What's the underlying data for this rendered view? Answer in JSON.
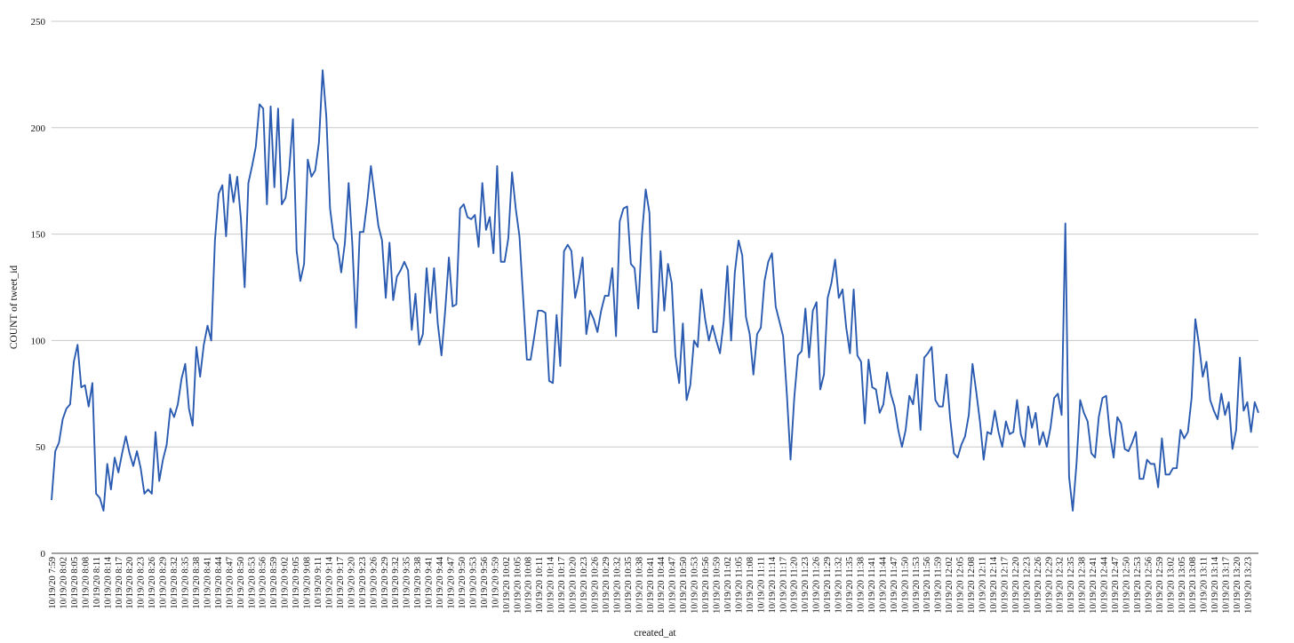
{
  "chart_data": {
    "type": "line",
    "xlabel": "created_at",
    "ylabel": "COUNT of tweet_id",
    "ylim": [
      0,
      250
    ],
    "yticks": [
      0,
      50,
      100,
      150,
      200,
      250
    ],
    "grid": true,
    "legend": "none",
    "series_color": "#2a5bb0",
    "x_tick_labels": [
      "10/19/20 7:59",
      "10/19/20 8:02",
      "10/19/20 8:05",
      "10/19/20 8:08",
      "10/19/20 8:11",
      "10/19/20 8:14",
      "10/19/20 8:17",
      "10/19/20 8:20",
      "10/19/20 8:23",
      "10/19/20 8:26",
      "10/19/20 8:29",
      "10/19/20 8:32",
      "10/19/20 8:35",
      "10/19/20 8:38",
      "10/19/20 8:41",
      "10/19/20 8:44",
      "10/19/20 8:47",
      "10/19/20 8:50",
      "10/19/20 8:53",
      "10/19/20 8:56",
      "10/19/20 8:59",
      "10/19/20 9:02",
      "10/19/20 9:05",
      "10/19/20 9:08",
      "10/19/20 9:11",
      "10/19/20 9:14",
      "10/19/20 9:17",
      "10/19/20 9:20",
      "10/19/20 9:23",
      "10/19/20 9:26",
      "10/19/20 9:29",
      "10/19/20 9:32",
      "10/19/20 9:35",
      "10/19/20 9:38",
      "10/19/20 9:41",
      "10/19/20 9:44",
      "10/19/20 9:47",
      "10/19/20 9:50",
      "10/19/20 9:53",
      "10/19/20 9:56",
      "10/19/20 9:59",
      "10/19/20 10:02",
      "10/19/20 10:05",
      "10/19/20 10:08",
      "10/19/20 10:11",
      "10/19/20 10:14",
      "10/19/20 10:17",
      "10/19/20 10:20",
      "10/19/20 10:23",
      "10/19/20 10:26",
      "10/19/20 10:29",
      "10/19/20 10:32",
      "10/19/20 10:35",
      "10/19/20 10:38",
      "10/19/20 10:41",
      "10/19/20 10:44",
      "10/19/20 10:47",
      "10/19/20 10:50",
      "10/19/20 10:53",
      "10/19/20 10:56",
      "10/19/20 10:59",
      "10/19/20 11:02",
      "10/19/20 11:05",
      "10/19/20 11:08",
      "10/19/20 11:11",
      "10/19/20 11:14",
      "10/19/20 11:17",
      "10/19/20 11:20",
      "10/19/20 11:23",
      "10/19/20 11:26",
      "10/19/20 11:29",
      "10/19/20 11:32",
      "10/19/20 11:35",
      "10/19/20 11:38",
      "10/19/20 11:41",
      "10/19/20 11:44",
      "10/19/20 11:47",
      "10/19/20 11:50",
      "10/19/20 11:53",
      "10/19/20 11:56",
      "10/19/20 11:59",
      "10/19/20 12:02",
      "10/19/20 12:05",
      "10/19/20 12:08",
      "10/19/20 12:11",
      "10/19/20 12:14",
      "10/19/20 12:17",
      "10/19/20 12:20",
      "10/19/20 12:23",
      "10/19/20 12:26",
      "10/19/20 12:29",
      "10/19/20 12:32",
      "10/19/20 12:35",
      "10/19/20 12:38",
      "10/19/20 12:41",
      "10/19/20 12:44",
      "10/19/20 12:47",
      "10/19/20 12:50",
      "10/19/20 12:53",
      "10/19/20 12:56",
      "10/19/20 12:59",
      "10/19/20 13:02",
      "10/19/20 13:05",
      "10/19/20 13:08",
      "10/19/20 13:11",
      "10/19/20 13:14",
      "10/19/20 13:17",
      "10/19/20 13:20",
      "10/19/20 13:23"
    ],
    "series": [
      {
        "values": [
          25,
          48,
          52,
          63,
          68,
          70,
          90,
          98,
          78,
          79,
          69,
          80,
          28,
          26,
          20,
          42,
          30,
          45,
          38,
          47,
          55,
          47,
          41,
          48,
          40,
          28,
          30,
          28,
          57,
          34,
          44,
          51,
          68,
          64,
          70,
          82,
          89,
          68,
          60,
          97,
          83,
          98,
          107,
          100,
          147,
          169,
          173,
          149,
          178,
          165,
          177,
          157,
          125,
          174,
          182,
          191,
          211,
          209,
          164,
          210,
          172,
          209,
          164,
          167,
          180,
          204,
          142,
          128,
          136,
          185,
          177,
          180,
          193,
          227,
          205,
          162,
          148,
          145,
          132,
          146,
          174,
          145,
          106,
          151,
          151,
          165,
          182,
          168,
          154,
          147,
          120,
          146,
          119,
          130,
          133,
          137,
          133,
          105,
          122,
          98,
          103,
          134,
          113,
          134,
          108,
          93,
          114,
          139,
          116,
          117,
          162,
          164,
          158,
          157,
          159,
          144,
          174,
          152,
          158,
          141,
          182,
          137,
          137,
          148,
          179,
          162,
          149,
          120,
          91,
          91,
          102,
          114,
          114,
          113,
          81,
          80,
          112,
          88,
          142,
          145,
          142,
          120,
          128,
          139,
          103,
          114,
          110,
          104,
          114,
          121,
          121,
          134,
          102,
          156,
          162,
          163,
          136,
          134,
          115,
          150,
          171,
          160,
          104,
          104,
          142,
          114,
          136,
          127,
          93,
          80,
          108,
          72,
          79,
          100,
          97,
          124,
          110,
          100,
          107,
          100,
          94,
          109,
          135,
          100,
          132,
          147,
          140,
          111,
          103,
          84,
          103,
          106,
          128,
          137,
          141,
          116,
          109,
          102,
          75,
          44,
          73,
          93,
          95,
          115,
          92,
          114,
          118,
          77,
          84,
          120,
          127,
          138,
          120,
          124,
          106,
          94,
          124,
          93,
          90,
          61,
          91,
          78,
          77,
          66,
          70,
          85,
          75,
          69,
          58,
          50,
          58,
          74,
          70,
          84,
          58,
          92,
          94,
          97,
          72,
          69,
          69,
          84,
          63,
          47,
          45,
          51,
          55,
          65,
          89,
          76,
          62,
          44,
          57,
          56,
          67,
          57,
          50,
          62,
          56,
          57,
          72,
          56,
          50,
          69,
          59,
          66,
          51,
          57,
          50,
          59,
          73,
          75,
          65,
          155,
          36,
          20,
          42,
          72,
          66,
          62,
          47,
          45,
          64,
          73,
          74,
          56,
          45,
          64,
          61,
          49,
          48,
          52,
          57,
          35,
          35,
          44,
          42,
          42,
          31,
          54,
          37,
          37,
          40,
          40,
          58,
          54,
          57,
          73,
          110,
          98,
          83,
          90,
          72,
          67,
          63,
          75,
          65,
          71,
          49,
          58,
          92,
          67,
          71,
          57,
          71,
          66
        ]
      }
    ]
  }
}
